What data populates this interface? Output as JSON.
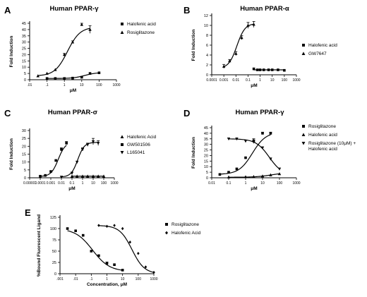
{
  "chart_data": [
    {
      "letter": "A",
      "title": "Human PPAR-γ",
      "type": "scatter",
      "xlabel": "μM",
      "ylabel": "Fold Induction",
      "xscale": "log",
      "xlim": [
        0.01,
        1000
      ],
      "ylim": [
        0,
        45
      ],
      "xticks": [
        0.01,
        0.1,
        1,
        10,
        100,
        1000
      ],
      "xtick_labels": [
        ".01",
        ".1",
        "1",
        "10",
        "100",
        "1000"
      ],
      "yticks": [
        0,
        5,
        10,
        15,
        20,
        25,
        30,
        35,
        40,
        45
      ],
      "legend_position": "right",
      "series": [
        {
          "name": "Halofenic acid",
          "marker": "square",
          "x": [
            0.1,
            0.3,
            1,
            3,
            10,
            30,
            100
          ],
          "y": [
            1,
            1,
            1,
            1.3,
            2,
            5,
            5.5
          ],
          "curve": {
            "bottom": 1,
            "top": 5.8,
            "ec50": 15,
            "hill": 1.3
          }
        },
        {
          "name": "Rosiglitazone",
          "marker": "triangle",
          "x": [
            0.03,
            0.1,
            0.3,
            1,
            3,
            10,
            30
          ],
          "y": [
            3,
            5,
            8,
            20,
            30,
            44,
            40
          ],
          "err": [
            0,
            0,
            0,
            1,
            1,
            1,
            3
          ],
          "curve": {
            "bottom": 3,
            "top": 42,
            "ec50": 1.5,
            "hill": 1.2
          }
        }
      ]
    },
    {
      "letter": "B",
      "title": "Human PPAR-α",
      "type": "scatter",
      "xlabel": "μM",
      "ylabel": "Fold Induction",
      "xscale": "log",
      "xlim": [
        0.0001,
        1000
      ],
      "ylim": [
        0,
        12
      ],
      "xticks": [
        0.0001,
        0.001,
        0.01,
        0.1,
        1,
        10,
        100,
        1000
      ],
      "xtick_labels": [
        "0.0001",
        "0.001",
        "0.01",
        "0.1",
        "1",
        "10",
        "100",
        "1000"
      ],
      "yticks": [
        0,
        2,
        4,
        6,
        8,
        10,
        12
      ],
      "legend_position": "right",
      "series": [
        {
          "name": "Halofenic acid",
          "marker": "square",
          "x": [
            0.3,
            0.6,
            1,
            2,
            5,
            10,
            30,
            100
          ],
          "y": [
            1.2,
            1,
            1,
            1,
            1,
            1,
            1,
            0.9
          ],
          "curve": {
            "bottom": 1,
            "top": 1,
            "ec50": 1,
            "hill": 1
          }
        },
        {
          "name": "GW7647",
          "marker": "triangle",
          "x": [
            0.001,
            0.003,
            0.01,
            0.03,
            0.1,
            0.3
          ],
          "y": [
            1.7,
            2.8,
            4.3,
            7.5,
            10,
            10.2
          ],
          "err": [
            0.4,
            0.3,
            0.4,
            0.4,
            0.6,
            0.6
          ],
          "curve": {
            "bottom": 1.3,
            "top": 10.4,
            "ec50": 0.012,
            "hill": 1.3
          }
        }
      ]
    },
    {
      "letter": "C",
      "title": "Human PPAR-σ",
      "type": "scatter",
      "xlabel": "μM",
      "ylabel": "Fold Induction",
      "xscale": "log",
      "xlim": [
        1e-05,
        1000
      ],
      "ylim": [
        0,
        30
      ],
      "xticks": [
        1e-05,
        0.0001,
        0.001,
        0.01,
        0.1,
        1,
        10,
        100,
        1000
      ],
      "xtick_labels": [
        "0.00001",
        "0.0001",
        "0.001",
        "0.01",
        "0.1",
        "1",
        "10",
        "100",
        "1000"
      ],
      "yticks": [
        0,
        5,
        10,
        15,
        20,
        25,
        30
      ],
      "legend_position": "right",
      "series": [
        {
          "name": "Halofenic Acid",
          "marker": "triangle",
          "x": [
            0.1,
            0.3,
            1,
            3,
            10,
            30,
            100
          ],
          "y": [
            1,
            1,
            1,
            1,
            1,
            1,
            1
          ],
          "curve": {
            "bottom": 1,
            "top": 1,
            "ec50": 1,
            "hill": 1
          }
        },
        {
          "name": "GW501506",
          "marker": "square",
          "x": [
            0.0001,
            0.0003,
            0.001,
            0.003,
            0.01,
            0.03
          ],
          "y": [
            1,
            1.5,
            4,
            11,
            18,
            22
          ],
          "err": [
            0,
            0,
            0,
            0,
            1,
            1
          ],
          "curve": {
            "bottom": 0.8,
            "top": 22.5,
            "ec50": 0.005,
            "hill": 1.3
          }
        },
        {
          "name": "L165041",
          "marker": "inverted-triangle",
          "x": [
            0.01,
            0.1,
            0.3,
            1,
            3,
            10,
            30
          ],
          "y": [
            0.5,
            3,
            10,
            18,
            21,
            23,
            22
          ],
          "err": [
            0,
            0,
            0,
            1,
            1,
            2,
            1.5
          ],
          "curve": {
            "bottom": 0.5,
            "top": 22.5,
            "ec50": 0.35,
            "hill": 1.4
          }
        }
      ]
    },
    {
      "letter": "D",
      "title": "Human PPAR-γ",
      "type": "scatter",
      "xlabel": "μM",
      "ylabel": "Fold Induction",
      "xscale": "log",
      "xlim": [
        0.01,
        1000
      ],
      "ylim": [
        0,
        45
      ],
      "xticks": [
        0.01,
        0.1,
        1,
        10,
        100,
        1000
      ],
      "xtick_labels": [
        "0.01",
        "0.1",
        "1",
        "10",
        "100",
        "1000"
      ],
      "yticks": [
        0,
        5,
        10,
        15,
        20,
        25,
        30,
        35,
        40,
        45
      ],
      "legend_position": "right",
      "series": [
        {
          "name": "Rosiglitazone",
          "marker": "square",
          "x": [
            0.03,
            0.1,
            0.3,
            1,
            3,
            10,
            30
          ],
          "y": [
            3,
            5,
            8,
            18,
            33,
            40,
            40
          ],
          "err": [
            0,
            0,
            0,
            0,
            2,
            1,
            1
          ],
          "curve": {
            "bottom": 3,
            "top": 41,
            "ec50": 2.5,
            "hill": 1.1
          }
        },
        {
          "name": "Halofenic acid",
          "marker": "triangle",
          "x": [
            0.1,
            1,
            3,
            10,
            30,
            100
          ],
          "y": [
            0.6,
            0.8,
            1,
            1.5,
            2.5,
            3.5
          ],
          "curve": {
            "bottom": 0.5,
            "top": 4.5,
            "ec50": 30,
            "hill": 1
          }
        },
        {
          "name": "Rosiglitazone (10μM) + Halofenic acid",
          "name_lines": [
            "Rosiglitazone (10μM) +",
            "Halofenic acid"
          ],
          "marker": "inverted-triangle",
          "x": [
            0.1,
            0.3,
            1,
            3,
            10,
            30,
            100
          ],
          "y": [
            35,
            35,
            33,
            33,
            27,
            17,
            8
          ],
          "err": [
            0,
            0,
            0,
            2,
            0,
            0,
            0
          ],
          "curve": {
            "bottom": 2,
            "top": 35,
            "ec50": 25,
            "hill": -1.1
          }
        }
      ]
    },
    {
      "letter": "E",
      "title": "",
      "type": "scatter",
      "xlabel": "Concentration, μM",
      "ylabel": "%Bound Fluorescent Ligand",
      "xscale": "log",
      "xlim": [
        0.001,
        1000
      ],
      "ylim": [
        0,
        125
      ],
      "xticks": [
        0.001,
        0.01,
        0.1,
        1,
        10,
        100,
        1000
      ],
      "xtick_labels": [
        ".001",
        ".01",
        ".1",
        "1",
        "10",
        "100",
        "1000"
      ],
      "yticks": [
        0,
        25,
        50,
        75,
        100,
        125
      ],
      "legend_position": "right",
      "series": [
        {
          "name": "Rosiglitazone",
          "marker": "square",
          "x": [
            0.003,
            0.01,
            0.03,
            0.1,
            0.3,
            1,
            3,
            10
          ],
          "y": [
            100,
            95,
            85,
            50,
            40,
            23,
            20,
            8
          ],
          "err": [
            0,
            0,
            0,
            0,
            0,
            3,
            0,
            0
          ],
          "curve": {
            "bottom": 5,
            "top": 100,
            "ec50": 0.12,
            "hill": -0.8
          }
        },
        {
          "name": "Halofenic Acid",
          "marker": "diamond",
          "x": [
            0.3,
            1,
            3,
            10,
            30,
            100,
            300,
            1000
          ],
          "y": [
            107,
            105,
            107,
            100,
            70,
            45,
            15,
            3
          ],
          "curve": {
            "bottom": 0,
            "top": 107,
            "ec50": 40,
            "hill": -1.1
          }
        }
      ]
    }
  ]
}
